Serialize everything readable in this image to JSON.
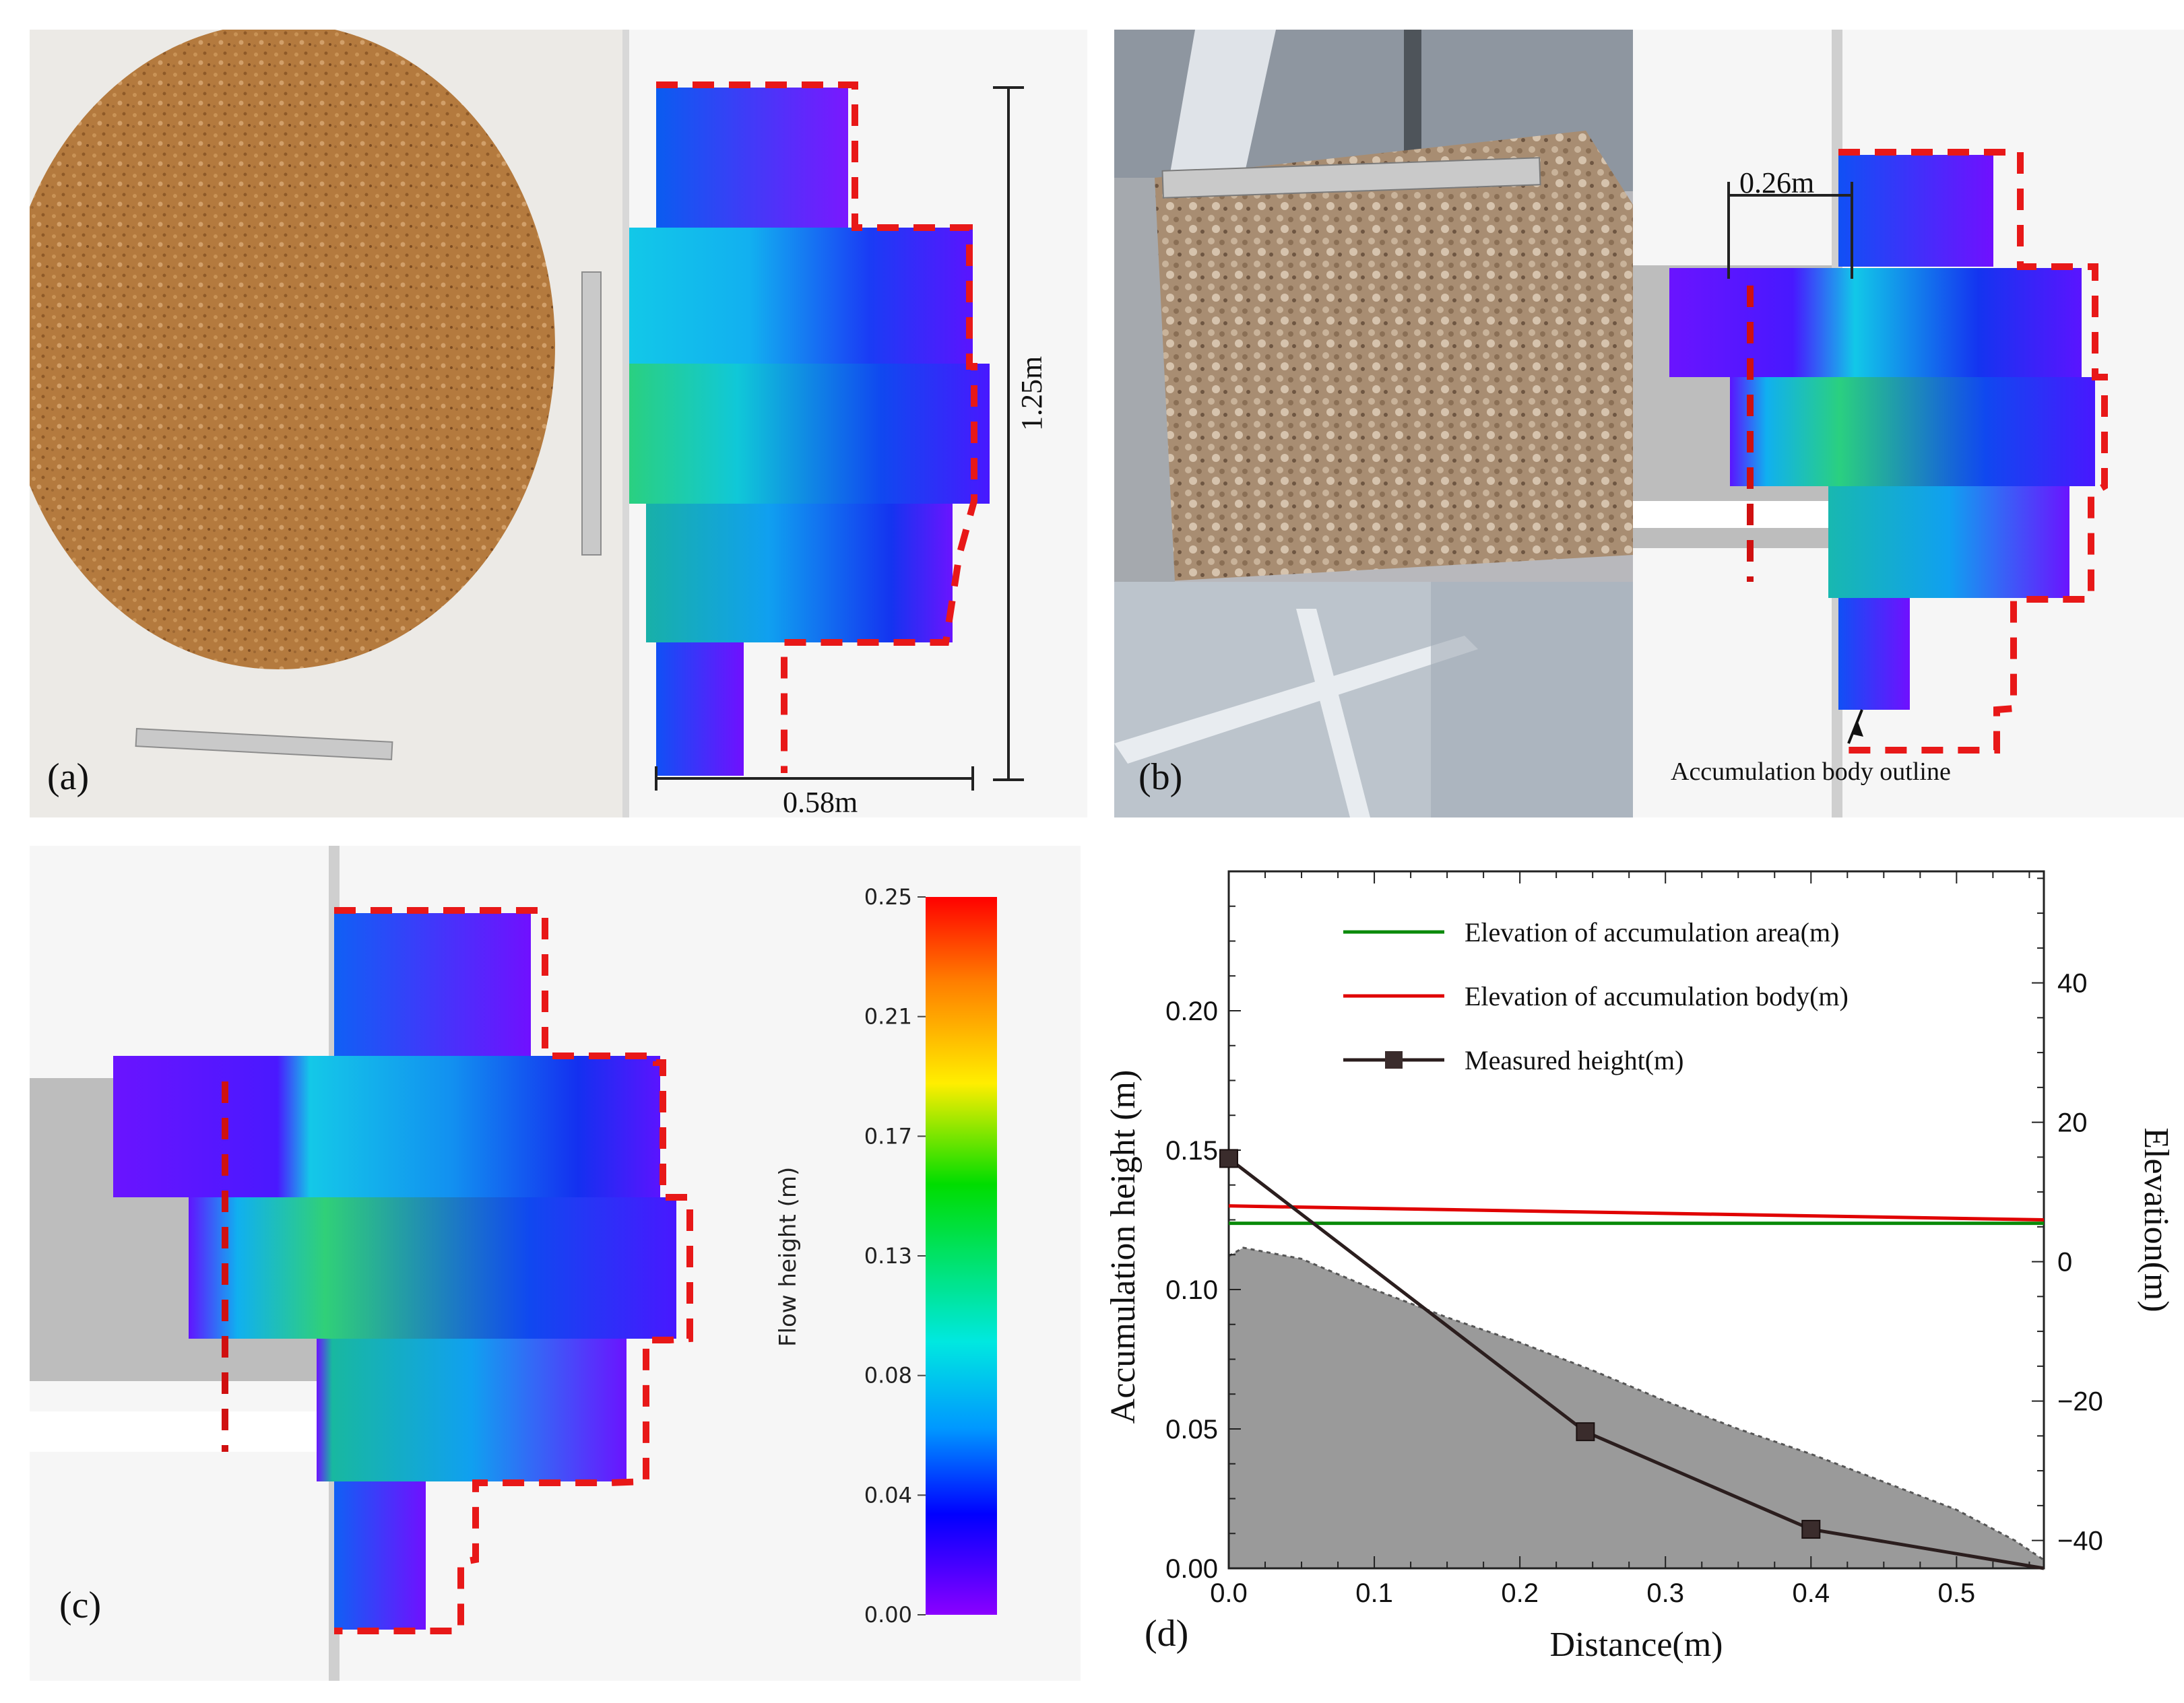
{
  "panels": {
    "a": {
      "label": "(a)",
      "width_label": "0.58m",
      "length_label": "1.25m",
      "photo": "soil-pile-top-view-with-steel-rulers"
    },
    "b": {
      "label": "(b)",
      "offset_label": "0.26m",
      "outline_annotation": "Accumulation body outline",
      "photo": "soil-in-flume-with-steel-ruler"
    },
    "c": {
      "label": "(c)"
    },
    "d": {
      "label": "(d)"
    }
  },
  "colorbar": {
    "title": "Flow height (m)",
    "ticks": [
      "0.25",
      "0.21",
      "0.17",
      "0.13",
      "0.08",
      "0.04",
      "0.00"
    ],
    "stops": [
      "#ff0000",
      "#ff8000",
      "#ffee00",
      "#00dd00",
      "#00e8e0",
      "#0098ff",
      "#0000ff",
      "#8a00ff"
    ]
  },
  "chart_data": {
    "type": "line",
    "xlabel": "Distance(m)",
    "ylabel": "Accumulation  height  (m)",
    "y2label": "Elevation(m)",
    "xlim": [
      0.0,
      0.56
    ],
    "ylim": [
      0.0,
      0.25
    ],
    "y2lim": [
      -44,
      56
    ],
    "xticks": [
      "0.0",
      "0.1",
      "0.2",
      "0.3",
      "0.4",
      "0.5"
    ],
    "yticks": [
      "0.00",
      "0.05",
      "0.10",
      "0.15",
      "0.20"
    ],
    "y2ticks": [
      "40",
      "20",
      "0",
      "−20",
      "−40"
    ],
    "legend_position": "top-right",
    "series": [
      {
        "name": "Elevation of accumulation area(m)",
        "color": "#0a8a0a",
        "axis": "y2",
        "x": [
          0.0,
          0.56
        ],
        "y": [
          5.5,
          5.5
        ]
      },
      {
        "name": "Elevation of accumulation body(m)",
        "color": "#e00000",
        "axis": "y2",
        "x": [
          0.0,
          0.56
        ],
        "y": [
          8.0,
          6.0
        ]
      },
      {
        "name": "Measured height(m)",
        "color": "#2b1e1e",
        "axis": "y",
        "marker": "square",
        "x": [
          0.0,
          0.245,
          0.4,
          0.56
        ],
        "y": [
          0.147,
          0.049,
          0.014,
          0.0
        ]
      }
    ],
    "area": {
      "name": "simulated-accumulation-profile",
      "color": "#9a9a9a",
      "x": [
        0.0,
        0.01,
        0.05,
        0.1,
        0.15,
        0.2,
        0.25,
        0.3,
        0.35,
        0.4,
        0.45,
        0.5,
        0.54,
        0.56
      ],
      "y": [
        0.112,
        0.115,
        0.111,
        0.1,
        0.09,
        0.081,
        0.071,
        0.06,
        0.05,
        0.041,
        0.031,
        0.021,
        0.01,
        0.003
      ]
    }
  }
}
